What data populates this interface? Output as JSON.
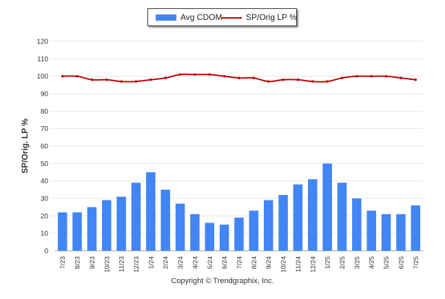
{
  "legend": {
    "bar_label": "Avg CDOM",
    "line_label": "SP/Orig LP %"
  },
  "colors": {
    "bar": "#4285f4",
    "line": "#c00000",
    "grid": "#e6e6e6",
    "axis": "#999999"
  },
  "copyright": "Copyright © Trendgraphix, Inc.",
  "chart_data": {
    "type": "bar",
    "title": "",
    "xlabel": "",
    "ylabel": "SP/Orig. LP %",
    "ylim": [
      0,
      120
    ],
    "yticks": [
      0,
      10,
      20,
      30,
      40,
      50,
      60,
      70,
      80,
      90,
      100,
      110,
      120
    ],
    "grid": true,
    "legend_position": "top-center",
    "categories": [
      "7/23",
      "8/23",
      "9/23",
      "10/23",
      "11/23",
      "12/23",
      "1/24",
      "2/24",
      "3/24",
      "4/24",
      "5/24",
      "6/24",
      "7/24",
      "8/24",
      "9/24",
      "10/24",
      "11/24",
      "12/24",
      "1/25",
      "2/25",
      "3/25",
      "4/25",
      "5/25",
      "6/25",
      "7/25"
    ],
    "series": [
      {
        "name": "Avg CDOM",
        "type": "bar",
        "values": [
          22,
          22,
          25,
          29,
          31,
          39,
          45,
          35,
          27,
          21,
          16,
          15,
          19,
          23,
          29,
          32,
          38,
          41,
          50,
          39,
          30,
          23,
          21,
          21,
          26
        ]
      },
      {
        "name": "SP/Orig LP %",
        "type": "line",
        "values": [
          100,
          100,
          98,
          98,
          97,
          97,
          98,
          99,
          101,
          101,
          101,
          100,
          99,
          99,
          97,
          98,
          98,
          97,
          97,
          99,
          100,
          100,
          100,
          99,
          98
        ]
      }
    ]
  }
}
